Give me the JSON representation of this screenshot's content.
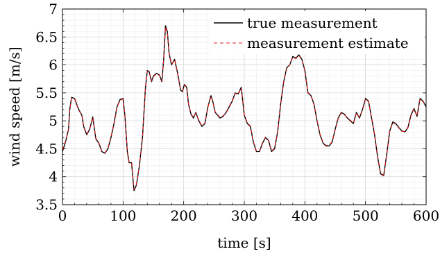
{
  "chart_data": {
    "type": "line",
    "xlabel": "time [s]",
    "ylabel": "wind speed [m/s]",
    "xlim": [
      0,
      600
    ],
    "ylim": [
      3.5,
      7
    ],
    "xticks": [
      0,
      100,
      200,
      300,
      400,
      500,
      600
    ],
    "xtick_labels": [
      "0",
      "100",
      "200",
      "300",
      "400",
      "500",
      "600"
    ],
    "yticks": [
      3.5,
      4,
      4.5,
      5,
      5.5,
      6,
      6.5,
      7
    ],
    "ytick_labels": [
      "3.5",
      "4",
      "4.5",
      "5",
      "5.5",
      "6",
      "6.5",
      "7"
    ],
    "grid": true,
    "legend_position": "top-right",
    "series": [
      {
        "name": "true measurement",
        "color": "#000000",
        "style": "solid",
        "x": [
          0,
          5,
          10,
          12,
          15,
          20,
          25,
          28,
          32,
          35,
          40,
          45,
          50,
          55,
          60,
          65,
          70,
          75,
          80,
          85,
          90,
          95,
          100,
          103,
          107,
          110,
          114,
          118,
          122,
          127,
          132,
          137,
          140,
          143,
          147,
          150,
          155,
          160,
          164,
          167,
          170,
          173,
          176,
          180,
          185,
          190,
          195,
          198,
          201,
          205,
          208,
          212,
          216,
          220,
          225,
          230,
          235,
          240,
          245,
          248,
          252,
          256,
          260,
          265,
          270,
          275,
          280,
          285,
          290,
          295,
          300,
          305,
          310,
          315,
          320,
          325,
          330,
          335,
          340,
          345,
          350,
          355,
          360,
          365,
          370,
          375,
          380,
          385,
          390,
          395,
          400,
          405,
          410,
          415,
          420,
          425,
          430,
          435,
          440,
          445,
          450,
          455,
          460,
          465,
          470,
          475,
          480,
          485,
          490,
          495,
          500,
          505,
          510,
          515,
          520,
          525,
          530,
          535,
          540,
          545,
          550,
          555,
          560,
          565,
          570,
          575,
          580,
          585,
          590,
          595,
          600
        ],
        "y": [
          4.45,
          4.62,
          4.85,
          5.2,
          5.42,
          5.4,
          5.25,
          5.18,
          5.1,
          4.9,
          4.75,
          4.85,
          5.07,
          4.68,
          4.6,
          4.45,
          4.42,
          4.5,
          4.7,
          4.95,
          5.25,
          5.38,
          5.4,
          5.1,
          4.45,
          4.25,
          4.25,
          3.75,
          3.85,
          4.2,
          4.7,
          5.6,
          5.9,
          5.88,
          5.7,
          5.8,
          5.85,
          5.82,
          5.7,
          6.1,
          6.7,
          6.6,
          6.2,
          6.0,
          6.1,
          5.85,
          5.55,
          5.52,
          5.65,
          5.6,
          5.3,
          5.12,
          5.05,
          5.15,
          5.0,
          4.9,
          4.95,
          5.25,
          5.45,
          5.35,
          5.15,
          5.1,
          5.05,
          5.08,
          5.15,
          5.25,
          5.35,
          5.5,
          5.48,
          5.6,
          5.1,
          4.95,
          4.9,
          4.62,
          4.45,
          4.45,
          4.6,
          4.7,
          4.65,
          4.45,
          4.5,
          4.8,
          5.3,
          5.7,
          5.95,
          6.0,
          6.15,
          6.12,
          6.18,
          6.1,
          5.9,
          5.5,
          5.45,
          5.3,
          5.0,
          4.75,
          4.6,
          4.55,
          4.55,
          4.62,
          4.85,
          5.05,
          5.15,
          5.12,
          5.05,
          5.0,
          4.95,
          5.15,
          5.05,
          5.2,
          5.4,
          5.35,
          5.05,
          4.75,
          4.35,
          4.05,
          4.02,
          4.4,
          4.82,
          4.98,
          4.95,
          4.88,
          4.82,
          4.8,
          4.88,
          5.1,
          5.22,
          5.08,
          5.4,
          5.35,
          5.25
        ]
      },
      {
        "name": "measurement estimate",
        "color": "#e41a1c",
        "style": "dashed",
        "x": [
          0,
          5,
          10,
          12,
          15,
          20,
          25,
          28,
          32,
          35,
          40,
          45,
          50,
          55,
          60,
          65,
          70,
          75,
          80,
          85,
          90,
          95,
          100,
          103,
          107,
          110,
          114,
          118,
          122,
          127,
          132,
          137,
          140,
          143,
          147,
          150,
          155,
          160,
          164,
          167,
          170,
          173,
          176,
          180,
          185,
          190,
          195,
          198,
          201,
          205,
          208,
          212,
          216,
          220,
          225,
          230,
          235,
          240,
          245,
          248,
          252,
          256,
          260,
          265,
          270,
          275,
          280,
          285,
          290,
          295,
          300,
          305,
          310,
          315,
          320,
          325,
          330,
          335,
          340,
          345,
          350,
          355,
          360,
          365,
          370,
          375,
          380,
          385,
          390,
          395,
          400,
          405,
          410,
          415,
          420,
          425,
          430,
          435,
          440,
          445,
          450,
          455,
          460,
          465,
          470,
          475,
          480,
          485,
          490,
          495,
          500,
          505,
          510,
          515,
          520,
          525,
          530,
          535,
          540,
          545,
          550,
          555,
          560,
          565,
          570,
          575,
          580,
          585,
          590,
          595,
          600
        ],
        "y": [
          4.48,
          4.63,
          4.86,
          5.19,
          5.41,
          5.39,
          5.24,
          5.17,
          5.1,
          4.91,
          4.76,
          4.86,
          5.06,
          4.69,
          4.61,
          4.46,
          4.43,
          4.51,
          4.71,
          4.96,
          5.24,
          5.37,
          5.39,
          5.1,
          4.46,
          4.26,
          4.24,
          3.77,
          3.86,
          4.21,
          4.71,
          5.59,
          5.89,
          5.87,
          5.71,
          5.79,
          5.84,
          5.81,
          5.71,
          6.09,
          6.68,
          6.58,
          6.19,
          6.01,
          6.09,
          5.84,
          5.56,
          5.53,
          5.64,
          5.59,
          5.31,
          5.13,
          5.06,
          5.14,
          5.01,
          4.91,
          4.96,
          5.24,
          5.44,
          5.34,
          5.16,
          5.11,
          5.06,
          5.09,
          5.14,
          5.24,
          5.34,
          5.49,
          5.47,
          5.59,
          5.11,
          4.96,
          4.91,
          4.63,
          4.46,
          4.46,
          4.61,
          4.71,
          4.66,
          4.46,
          4.51,
          4.81,
          5.29,
          5.69,
          5.94,
          6.0,
          6.14,
          6.11,
          6.17,
          6.09,
          5.89,
          5.51,
          5.46,
          5.29,
          5.01,
          4.76,
          4.61,
          4.56,
          4.56,
          4.63,
          4.84,
          5.04,
          5.14,
          5.11,
          5.06,
          5.01,
          4.96,
          5.14,
          5.06,
          5.19,
          5.39,
          5.34,
          5.06,
          4.76,
          4.36,
          4.06,
          4.03,
          4.39,
          4.81,
          4.97,
          4.94,
          4.87,
          4.81,
          4.81,
          4.87,
          5.09,
          5.21,
          5.08,
          5.39,
          5.34,
          5.26
        ]
      }
    ]
  }
}
